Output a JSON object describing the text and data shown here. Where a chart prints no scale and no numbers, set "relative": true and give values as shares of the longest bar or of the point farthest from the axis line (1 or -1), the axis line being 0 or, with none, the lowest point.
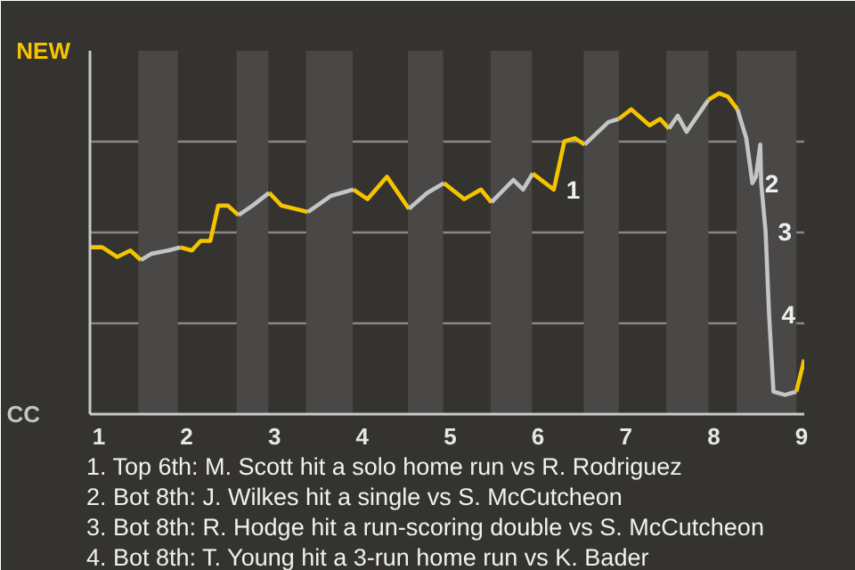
{
  "chart_data": {
    "type": "line",
    "relative": true,
    "xlim": [
      0.9,
      9.03
    ],
    "xticks": [
      1,
      2,
      3,
      4,
      5,
      6,
      7,
      8,
      9
    ],
    "grid": "y",
    "marker": "none",
    "line_style": "solid",
    "series": [
      {
        "name": "NEW",
        "color": "#f5c400",
        "x": [
          0.9,
          1.04,
          1.21,
          1.36,
          1.48
        ],
        "values": [
          0.52,
          0.52,
          0.49,
          0.51,
          0.48
        ]
      },
      {
        "name": "CC",
        "color": "#c4c4c4",
        "x": [
          1.48,
          1.6,
          1.79,
          1.93
        ],
        "values": [
          0.48,
          0.5,
          0.51,
          0.52
        ]
      },
      {
        "color": "#f5c400",
        "x": [
          1.93,
          2.06,
          2.16,
          2.27,
          2.36,
          2.47,
          2.59
        ],
        "values": [
          0.52,
          0.51,
          0.54,
          0.54,
          0.65,
          0.65,
          0.62
        ]
      },
      {
        "color": "#c4c4c5",
        "x": [
          2.59,
          2.75,
          2.94
        ],
        "values": [
          0.62,
          0.65,
          0.69
        ]
      },
      {
        "color": "#f5c400",
        "x": [
          2.94,
          3.08,
          3.38
        ],
        "values": [
          0.69,
          0.65,
          0.63
        ]
      },
      {
        "color": "#c4c4c6",
        "x": [
          3.38,
          3.64,
          3.9
        ],
        "values": [
          0.63,
          0.68,
          0.7
        ]
      },
      {
        "color": "#f5c400",
        "x": [
          3.9,
          4.06,
          4.28,
          4.53
        ],
        "values": [
          0.7,
          0.67,
          0.74,
          0.64
        ]
      },
      {
        "color": "#c4c4c7",
        "x": [
          4.53,
          4.74,
          4.93
        ],
        "values": [
          0.64,
          0.69,
          0.72
        ]
      },
      {
        "color": "#f5c400",
        "x": [
          4.93,
          5.16,
          5.35,
          5.47
        ],
        "values": [
          0.72,
          0.67,
          0.7,
          0.66
        ]
      },
      {
        "color": "#c4c5c4",
        "x": [
          5.47,
          5.72,
          5.83,
          5.94
        ],
        "values": [
          0.66,
          0.73,
          0.7,
          0.75
        ]
      },
      {
        "color": "#f5c400",
        "x": [
          5.94,
          6.18,
          6.3,
          6.42,
          6.53
        ],
        "values": [
          0.75,
          0.7,
          0.85,
          0.86,
          0.84
        ]
      },
      {
        "color": "#c4c6c4",
        "x": [
          6.53,
          6.8,
          6.92
        ],
        "values": [
          0.84,
          0.91,
          0.92
        ]
      },
      {
        "color": "#f5c400",
        "x": [
          6.92,
          7.06,
          7.27,
          7.39,
          7.49
        ],
        "values": [
          0.92,
          0.95,
          0.9,
          0.92,
          0.89
        ]
      },
      {
        "color": "#c4c7c4",
        "x": [
          7.49,
          7.59,
          7.69,
          7.84,
          7.94
        ],
        "values": [
          0.89,
          0.93,
          0.88,
          0.94,
          0.98
        ]
      },
      {
        "color": "#f5c400",
        "x": [
          7.94,
          8.06,
          8.16,
          8.27
        ],
        "values": [
          0.98,
          1,
          0.99,
          0.95
        ]
      },
      {
        "color": "#c5c4c4",
        "x": [
          8.27,
          8.37,
          8.44,
          8.48,
          8.53,
          8.54,
          8.59,
          8.63,
          8.68,
          8.81,
          8.94
        ],
        "values": [
          0.95,
          0.86,
          0.72,
          0.74,
          0.84,
          0.72,
          0.57,
          0.31,
          0.07,
          0.06,
          0.07
        ]
      },
      {
        "color": "#f5c400",
        "x": [
          8.94,
          9.03
        ],
        "values": [
          0.07,
          0.17
        ]
      }
    ],
    "bands": [
      {
        "axis": "x",
        "from": 1.45,
        "to": 1.9,
        "color": "#4a4846"
      },
      {
        "axis": "x",
        "from": 2.57,
        "to": 2.93,
        "color": "#4a4846"
      },
      {
        "axis": "x",
        "from": 3.36,
        "to": 3.89,
        "color": "#4a4846"
      },
      {
        "axis": "x",
        "from": 4.52,
        "to": 4.92,
        "color": "#4a4846"
      },
      {
        "axis": "x",
        "from": 5.46,
        "to": 5.93,
        "color": "#4a4846"
      },
      {
        "axis": "x",
        "from": 6.52,
        "to": 6.92,
        "color": "#4a4846"
      },
      {
        "axis": "x",
        "from": 7.46,
        "to": 7.94,
        "color": "#4a4846"
      },
      {
        "axis": "x",
        "from": 8.26,
        "to": 8.94,
        "color": "#4a4846"
      }
    ],
    "annotations": [
      {
        "text": "1",
        "x": 6.18,
        "y": 0.7
      },
      {
        "text": "2",
        "x": 8.44,
        "y": 0.72
      },
      {
        "text": "3",
        "x": 8.59,
        "y": 0.57
      },
      {
        "text": "4",
        "x": 8.63,
        "y": 0.31
      },
      "1. Top 6th: M. Scott hit a solo home run vs R. Rodriguez",
      "2. Bot 8th: J. Wilkes hit a single vs S. McCutcheon",
      "3. Bot 8th: R. Hodge hit a run-scoring double vs S. McCutcheon",
      "4. Bot 8th: T. Young hit a 3-run home run vs K. Bader"
    ]
  }
}
